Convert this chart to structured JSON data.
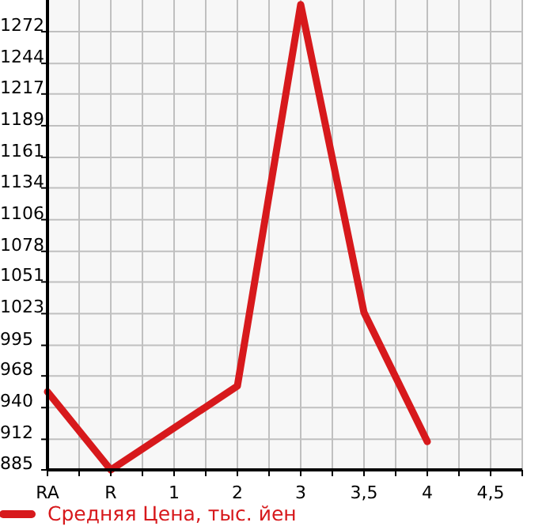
{
  "chart_data": {
    "type": "line",
    "categories": [
      "RA",
      "R",
      "1",
      "2",
      "3",
      "3,5",
      "4",
      "4,5"
    ],
    "series": [
      {
        "name": "Средняя Цена, тыс. йен",
        "color": "#d7191c",
        "values": [
          954,
          885,
          922,
          959,
          1296,
          1024,
          910,
          null
        ]
      }
    ],
    "ylim": [
      885,
      1300
    ],
    "yticks": [
      885,
      912,
      940,
      968,
      995,
      1023,
      1051,
      1078,
      1106,
      1134,
      1161,
      1189,
      1217,
      1244,
      1272
    ],
    "grid": true,
    "legend": "bottom",
    "marker": "none",
    "line_style": "solid"
  }
}
